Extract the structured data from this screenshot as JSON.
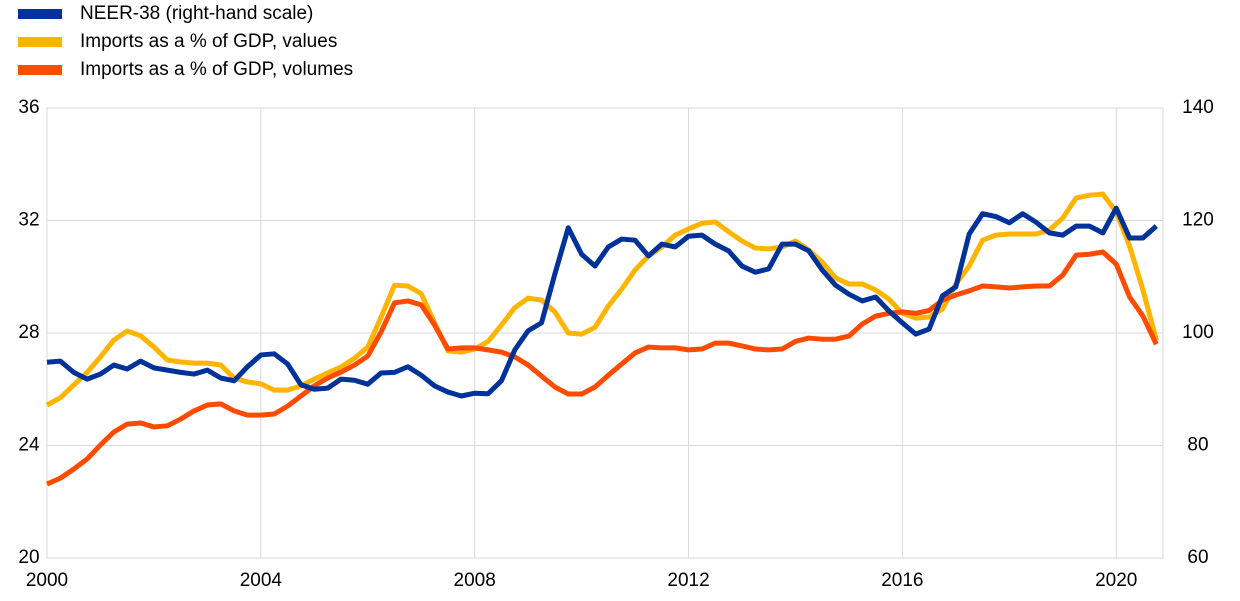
{
  "chart_data": {
    "type": "line",
    "x": [
      2000,
      2000.25,
      2000.5,
      2000.75,
      2001,
      2001.25,
      2001.5,
      2001.75,
      2002,
      2002.25,
      2002.5,
      2002.75,
      2003,
      2003.25,
      2003.5,
      2003.75,
      2004,
      2004.25,
      2004.5,
      2004.75,
      2005,
      2005.25,
      2005.5,
      2005.75,
      2006,
      2006.25,
      2006.5,
      2006.75,
      2007,
      2007.25,
      2007.5,
      2007.75,
      2008,
      2008.25,
      2008.5,
      2008.75,
      2009,
      2009.25,
      2009.5,
      2009.75,
      2010,
      2010.25,
      2010.5,
      2010.75,
      2011,
      2011.25,
      2011.5,
      2011.75,
      2012,
      2012.25,
      2012.5,
      2012.75,
      2013,
      2013.25,
      2013.5,
      2013.75,
      2014,
      2014.25,
      2014.5,
      2014.75,
      2015,
      2015.25,
      2015.5,
      2015.75,
      2016,
      2016.25,
      2016.5,
      2016.75,
      2017,
      2017.25,
      2017.5,
      2017.75,
      2018,
      2018.25,
      2018.5,
      2018.75,
      2019,
      2019.25,
      2019.5,
      2019.75,
      2020,
      2020.25,
      2020.5,
      2020.75
    ],
    "series": [
      {
        "name": "NEER-38 (right-hand scale)",
        "color": "#003299",
        "axis": "y2",
        "values": [
          94.8,
          95,
          93,
          91.8,
          92.7,
          94.3,
          93.6,
          95,
          93.8,
          93.4,
          93,
          92.7,
          93.4,
          92,
          91.5,
          94,
          96.1,
          96.3,
          94.5,
          90.8,
          90,
          90.2,
          91.8,
          91.6,
          90.9,
          92.9,
          93,
          94,
          92.5,
          90.6,
          89.5,
          88.8,
          89.3,
          89.2,
          91.5,
          97,
          100.4,
          101.8,
          110.5,
          118.7,
          114,
          111.9,
          115.3,
          116.7,
          116.5,
          113.7,
          115.8,
          115.3,
          117.2,
          117.4,
          115.8,
          114.6,
          111.9,
          110.8,
          111.4,
          115.8,
          115.8,
          114.6,
          111.2,
          108.5,
          106.9,
          105.7,
          106.4,
          103.9,
          101.8,
          99.8,
          100.7,
          106.6,
          108.2,
          117.6,
          121.2,
          120.7,
          119.6,
          121.2,
          119.7,
          117.8,
          117.4,
          119,
          119,
          117.8,
          122.2,
          116.9,
          116.9,
          119
        ]
      },
      {
        "name": "Imports as a % of GDP, values",
        "color": "#ffb400",
        "values": [
          25.44,
          25.7,
          26.15,
          26.6,
          27.15,
          27.75,
          28.07,
          27.9,
          27.5,
          27.04,
          26.97,
          26.93,
          26.93,
          26.86,
          26.4,
          26.26,
          26.19,
          25.97,
          25.97,
          26.12,
          26.36,
          26.58,
          26.79,
          27.1,
          27.5,
          28.57,
          29.7,
          29.67,
          29.4,
          28.36,
          27.36,
          27.32,
          27.43,
          27.7,
          28.28,
          28.9,
          29.24,
          29.17,
          28.75,
          28,
          27.96,
          28.2,
          28.96,
          29.56,
          30.24,
          30.74,
          31.06,
          31.48,
          31.7,
          31.9,
          31.95,
          31.6,
          31.27,
          31.02,
          30.99,
          31.06,
          31.27,
          30.95,
          30.52,
          29.96,
          29.74,
          29.74,
          29.53,
          29.2,
          28.7,
          28.53,
          28.57,
          28.85,
          29.74,
          30.38,
          31.3,
          31.48,
          31.52,
          31.52,
          31.52,
          31.66,
          32.09,
          32.8,
          32.9,
          32.94,
          32.3,
          31.09,
          29.53,
          27.75
        ]
      },
      {
        "name": "Imports as a % of GDP, volumes",
        "color": "#ff4b00",
        "values": [
          22.63,
          22.84,
          23.16,
          23.52,
          24.02,
          24.48,
          24.76,
          24.8,
          24.66,
          24.7,
          24.94,
          25.23,
          25.44,
          25.48,
          25.23,
          25.08,
          25.08,
          25.12,
          25.4,
          25.76,
          26.12,
          26.4,
          26.61,
          26.86,
          27.18,
          28.04,
          29.07,
          29.14,
          29,
          28.28,
          27.43,
          27.47,
          27.47,
          27.4,
          27.32,
          27.15,
          26.86,
          26.47,
          26.08,
          25.83,
          25.83,
          26.08,
          26.5,
          26.9,
          27.29,
          27.5,
          27.47,
          27.47,
          27.4,
          27.43,
          27.64,
          27.64,
          27.54,
          27.43,
          27.4,
          27.43,
          27.7,
          27.82,
          27.78,
          27.78,
          27.89,
          28.32,
          28.6,
          28.7,
          28.75,
          28.7,
          28.8,
          29.17,
          29.35,
          29.5,
          29.67,
          29.64,
          29.6,
          29.64,
          29.67,
          29.67,
          30.06,
          30.77,
          30.8,
          30.88,
          30.45,
          29.28,
          28.6,
          27.6
        ]
      }
    ],
    "xlim": [
      2000,
      2020.875
    ],
    "xticks": [
      2000,
      2004,
      2008,
      2012,
      2016,
      2020
    ],
    "ylim": [
      20,
      36
    ],
    "yticks": [
      20,
      24,
      28,
      32,
      36
    ],
    "y2lim": [
      60,
      140
    ],
    "y2ticks": [
      60,
      80,
      100,
      120,
      140
    ],
    "grid": true,
    "legend": "top-left"
  }
}
